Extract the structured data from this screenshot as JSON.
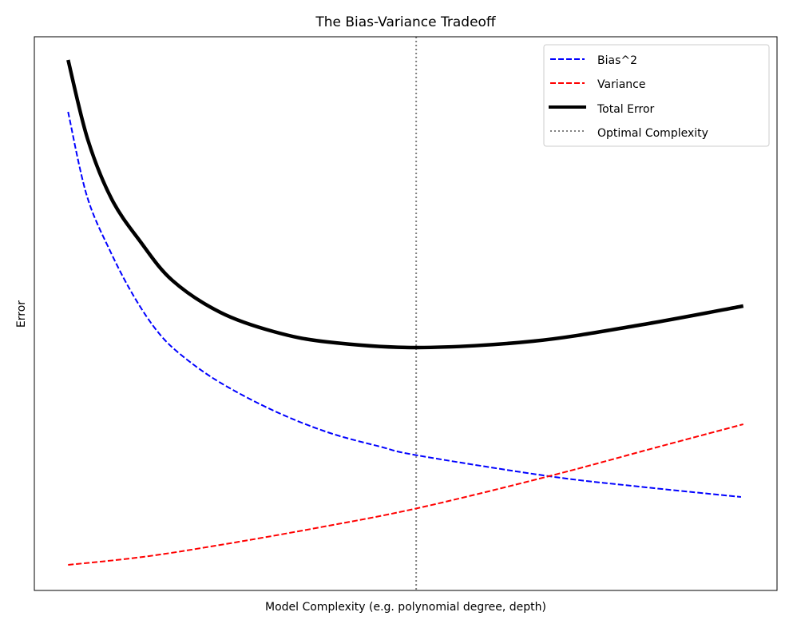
{
  "chart_data": {
    "type": "line",
    "title": "The Bias-Variance Tradeoff",
    "xlabel": "Model Complexity (e.g. polynomial degree, depth)",
    "ylabel": "Error",
    "xlim": [
      0.55,
      10.45
    ],
    "ylim": [
      0,
      6.93
    ],
    "ticks_visible": false,
    "grid": false,
    "legend_position": "top-right",
    "series": [
      {
        "name": "Bias^2",
        "color": "#0000ff",
        "style": "dashed",
        "x": [
          1.0,
          1.25,
          1.57,
          1.89,
          2.21,
          2.53,
          3.03,
          3.74,
          4.46,
          5.16,
          5.66,
          7.41,
          8.61,
          9.97
        ],
        "y": [
          5.99,
          4.94,
          4.23,
          3.66,
          3.22,
          2.93,
          2.6,
          2.25,
          1.98,
          1.8,
          1.69,
          1.43,
          1.3,
          1.17
        ]
      },
      {
        "name": "Variance",
        "color": "#ff0000",
        "style": "dashed",
        "x": [
          1.0,
          2.0,
          3.03,
          4.3,
          5.66,
          7.41,
          8.88,
          10.0
        ],
        "y": [
          0.32,
          0.42,
          0.57,
          0.78,
          1.03,
          1.43,
          1.8,
          2.08
        ]
      },
      {
        "name": "Total Error",
        "color": "#000000",
        "style": "solid",
        "x": [
          1.0,
          1.26,
          1.58,
          1.96,
          2.39,
          3.03,
          3.74,
          4.46,
          5.66,
          7.2,
          8.61,
          10.0
        ],
        "y": [
          6.64,
          5.65,
          4.9,
          4.37,
          3.88,
          3.48,
          3.24,
          3.11,
          3.04,
          3.12,
          3.32,
          3.56
        ]
      }
    ],
    "vlines": [
      {
        "name": "Optimal Complexity",
        "color": "#808080",
        "style": "dotted",
        "x": 5.64
      }
    ]
  }
}
